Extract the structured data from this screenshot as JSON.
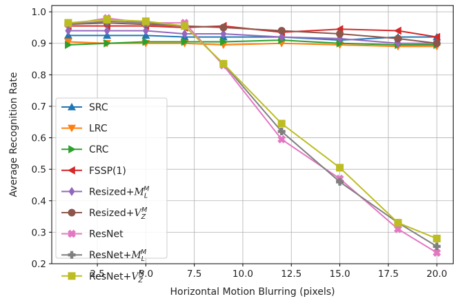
{
  "chart_data": {
    "type": "line",
    "title": "",
    "xlabel": "Horizontal Motion Blurring (pixels)",
    "ylabel": "Average Recognition Rate",
    "xlim": [
      0.15,
      20.85
    ],
    "ylim": [
      0.2,
      1.02
    ],
    "x": [
      1,
      3,
      5,
      7,
      9,
      12,
      15,
      18,
      20
    ],
    "xticks": [
      2.5,
      5.0,
      7.5,
      10.0,
      12.5,
      15.0,
      17.5,
      20.0
    ],
    "xtick_labels": [
      "2.5",
      "5.0",
      "7.5",
      "10.0",
      "12.5",
      "15.0",
      "17.5",
      "20.0"
    ],
    "yticks": [
      0.2,
      0.3,
      0.4,
      0.5,
      0.6,
      0.7,
      0.8,
      0.9,
      1.0
    ],
    "ytick_labels": [
      "0.2",
      "0.3",
      "0.4",
      "0.5",
      "0.6",
      "0.7",
      "0.8",
      "0.9",
      "1.0"
    ],
    "grid": true,
    "legend_position": "lower-left",
    "series": [
      {
        "name": "SRC",
        "color": "#1f77b4",
        "marker": "triangle-up",
        "values": [
          0.925,
          0.925,
          0.925,
          0.92,
          0.92,
          0.92,
          0.91,
          0.92,
          0.92
        ]
      },
      {
        "name": "LRC",
        "color": "#ff7f0e",
        "marker": "triangle-down",
        "values": [
          0.905,
          0.9,
          0.9,
          0.9,
          0.895,
          0.9,
          0.895,
          0.89,
          0.89
        ]
      },
      {
        "name": "CRC",
        "color": "#2ca02c",
        "marker": "triangle-right",
        "values": [
          0.895,
          0.9,
          0.905,
          0.905,
          0.905,
          0.91,
          0.9,
          0.895,
          0.895
        ]
      },
      {
        "name": "FSSP(1)",
        "color": "#d62728",
        "marker": "triangle-left",
        "values": [
          0.955,
          0.955,
          0.955,
          0.95,
          0.955,
          0.935,
          0.945,
          0.94,
          0.92
        ]
      },
      {
        "name": "Resized+",
        "sup": "M",
        "sub": "L",
        "script": "M",
        "color": "#9467bd",
        "marker": "diamond",
        "values": [
          0.94,
          0.94,
          0.94,
          0.93,
          0.93,
          0.92,
          0.915,
          0.9,
          0.9
        ]
      },
      {
        "name": "Resized+",
        "sup": "M",
        "sub": "Z",
        "script": "V",
        "color": "#8c564b",
        "marker": "circle",
        "values": [
          0.96,
          0.965,
          0.96,
          0.955,
          0.95,
          0.94,
          0.93,
          0.915,
          0.9
        ]
      },
      {
        "name": "ResNet",
        "color": "#e377c2",
        "marker": "x",
        "values": [
          0.96,
          0.98,
          0.965,
          0.965,
          0.83,
          0.595,
          0.47,
          0.31,
          0.235
        ]
      },
      {
        "name": "ResNet+",
        "sup": "M",
        "sub": "L",
        "script": "M",
        "color": "#7f7f7f",
        "marker": "plus",
        "values": [
          0.96,
          0.97,
          0.965,
          0.955,
          0.835,
          0.62,
          0.46,
          0.33,
          0.255
        ]
      },
      {
        "name": "ResNet+",
        "sup": "M",
        "sub": "Z",
        "script": "V",
        "color": "#bcbd22",
        "marker": "square",
        "values": [
          0.965,
          0.975,
          0.97,
          0.955,
          0.835,
          0.645,
          0.505,
          0.33,
          0.28
        ]
      }
    ]
  }
}
